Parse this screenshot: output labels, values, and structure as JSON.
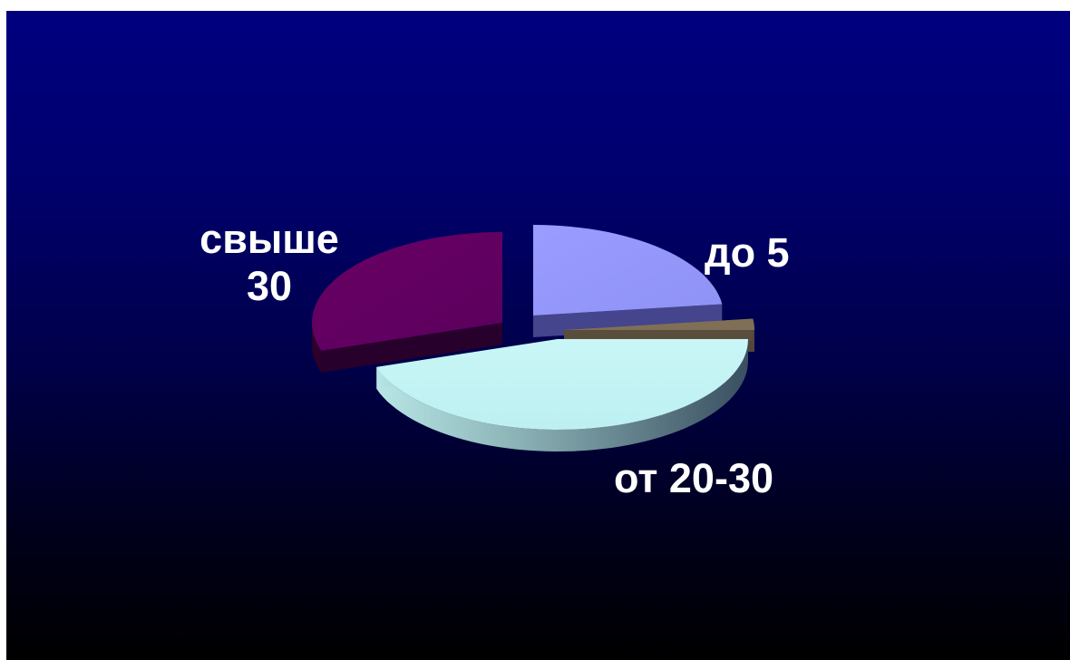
{
  "chart_data": {
    "type": "pie",
    "title": "",
    "series": [
      {
        "values": [
          {
            "label": "до 5",
            "value": 23,
            "color": "#9999ff"
          },
          {
            "label": "",
            "value": 2,
            "color": "#7f6f57"
          },
          {
            "label": "от 20-30",
            "value": 45,
            "color": "#ccffff"
          },
          {
            "label": "свыше 30",
            "value": 30,
            "color": "#660066"
          }
        ]
      }
    ],
    "labels": {
      "upto5": "до 5",
      "range20_30": "от 20-30",
      "over30": [
        "свыше",
        "30"
      ]
    },
    "style": "3d-exploded",
    "legend": "none"
  }
}
